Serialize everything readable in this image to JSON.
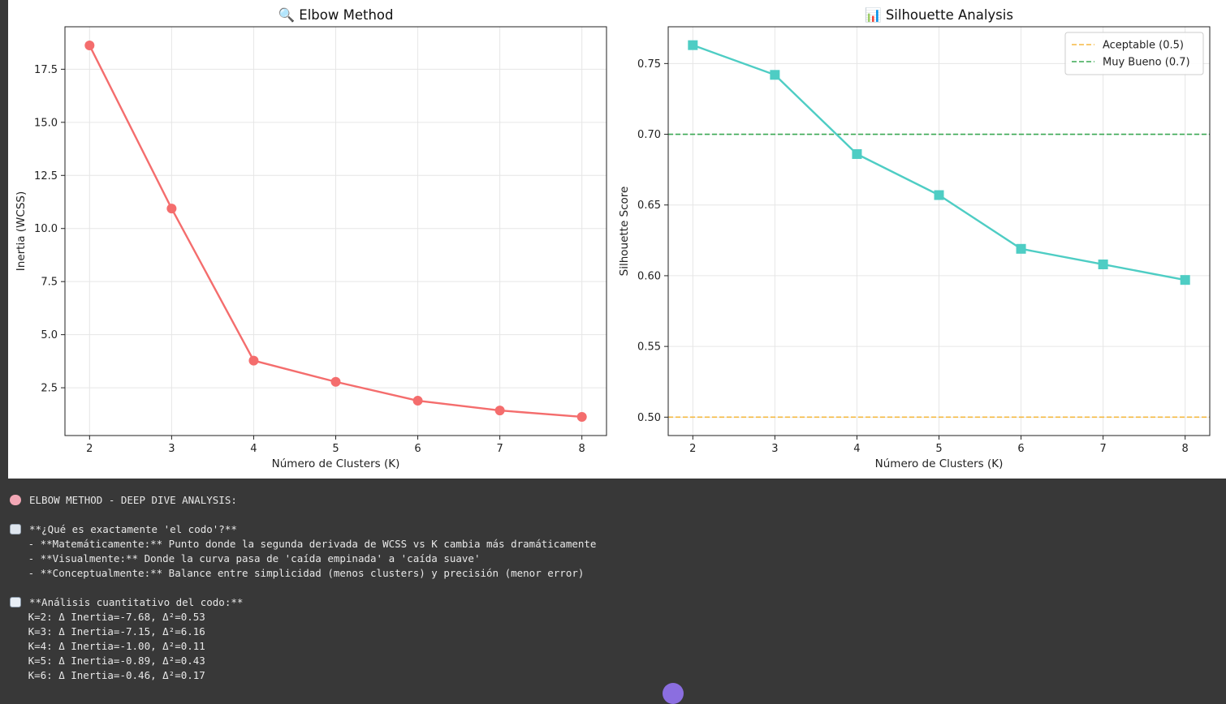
{
  "chart_data": [
    {
      "type": "line",
      "title": "🔍 Elbow Method",
      "xlabel": "Número de Clusters (K)",
      "ylabel": "Inertia (WCSS)",
      "x": [
        2,
        3,
        4,
        5,
        6,
        7,
        8
      ],
      "series": [
        {
          "values": [
            18.62,
            10.94,
            3.78,
            2.78,
            1.89,
            1.43,
            1.13
          ],
          "color": "#f46d6d",
          "marker": "circle"
        }
      ],
      "xlim": [
        1.7,
        8.3
      ],
      "ylim": [
        0.25,
        19.5
      ],
      "yticks": [
        2.5,
        5.0,
        7.5,
        10.0,
        12.5,
        15.0,
        17.5
      ],
      "ytick_labels": [
        "2.5",
        "5.0",
        "7.5",
        "10.0",
        "12.5",
        "15.0",
        "17.5"
      ],
      "xticks": [
        2,
        3,
        4,
        5,
        6,
        7,
        8
      ],
      "xtick_labels": [
        "2",
        "3",
        "4",
        "5",
        "6",
        "7",
        "8"
      ],
      "grid": true
    },
    {
      "type": "line",
      "title": "📊 Silhouette Analysis",
      "xlabel": "Número de Clusters (K)",
      "ylabel": "Silhouette Score",
      "x": [
        2,
        3,
        4,
        5,
        6,
        7,
        8
      ],
      "series": [
        {
          "values": [
            0.763,
            0.742,
            0.686,
            0.657,
            0.619,
            0.608,
            0.597
          ],
          "color": "#4ecdc4",
          "marker": "square"
        }
      ],
      "reference_lines": [
        {
          "name": "Aceptable (0.5)",
          "y": 0.5,
          "color": "#f5b942",
          "style": "dashed"
        },
        {
          "name": "Muy Bueno (0.7)",
          "y": 0.7,
          "color": "#3aa853",
          "style": "dashed"
        }
      ],
      "xlim": [
        1.7,
        8.3
      ],
      "ylim": [
        0.487,
        0.776
      ],
      "yticks": [
        0.5,
        0.55,
        0.6,
        0.65,
        0.7,
        0.75
      ],
      "ytick_labels": [
        "0.50",
        "0.55",
        "0.60",
        "0.65",
        "0.70",
        "0.75"
      ],
      "xticks": [
        2,
        3,
        4,
        5,
        6,
        7,
        8
      ],
      "xtick_labels": [
        "2",
        "3",
        "4",
        "5",
        "6",
        "7",
        "8"
      ],
      "legend_placement": "top-right",
      "grid": true
    }
  ],
  "console": {
    "lines": [
      {
        "icon": "brain",
        "text": "ELBOW METHOD - DEEP DIVE ANALYSIS:"
      },
      {
        "icon": "",
        "text": ""
      },
      {
        "icon": "chart-down",
        "text": "**¿Qué es exactamente 'el codo'?**"
      },
      {
        "icon": "",
        "text": "   - **Matemáticamente:** Punto donde la segunda derivada de WCSS vs K cambia más dramáticamente"
      },
      {
        "icon": "",
        "text": "   - **Visualmente:** Donde la curva pasa de 'caída empinada' a 'caída suave'"
      },
      {
        "icon": "",
        "text": "   - **Conceptualmente:** Balance entre simplicidad (menos clusters) y precisión (menor error)"
      },
      {
        "icon": "",
        "text": ""
      },
      {
        "icon": "chart-bar",
        "text": "**Análisis cuantitativo del codo:**"
      },
      {
        "icon": "",
        "text": "   K=2: Δ Inertia=-7.68, Δ²=0.53"
      },
      {
        "icon": "",
        "text": "   K=3: Δ Inertia=-7.15, Δ²=6.16"
      },
      {
        "icon": "",
        "text": "   K=4: Δ Inertia=-1.00, Δ²=0.11"
      },
      {
        "icon": "",
        "text": "   K=5: Δ Inertia=-0.89, Δ²=0.43"
      },
      {
        "icon": "",
        "text": "   K=6: Δ Inertia=-0.46, Δ²=0.17"
      }
    ]
  }
}
